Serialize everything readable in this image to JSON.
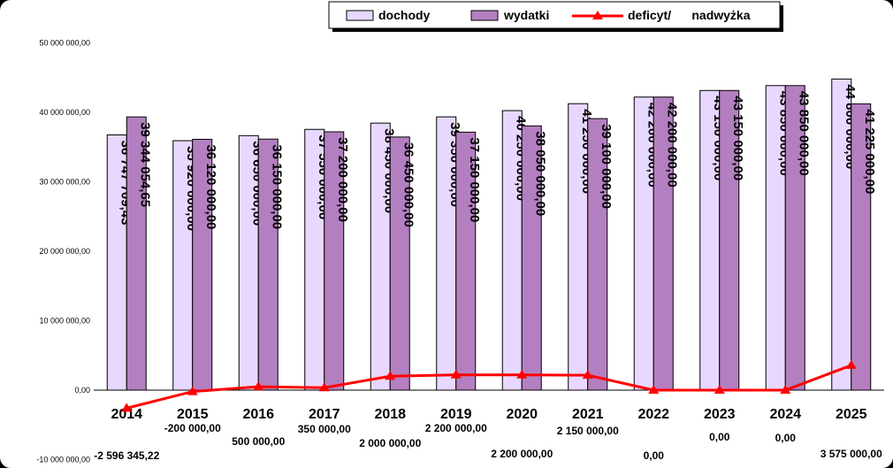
{
  "chart_data": {
    "type": "bar",
    "categories": [
      "2014",
      "2015",
      "2016",
      "2017",
      "2018",
      "2019",
      "2020",
      "2021",
      "2022",
      "2023",
      "2024",
      "2025"
    ],
    "series": [
      {
        "name": "dochody",
        "type": "bar",
        "color": "#e8d8ff",
        "values": [
          36747709.43,
          35920000,
          36650000,
          37550000,
          38450000,
          39350000,
          40250000,
          41250000,
          42200000,
          43150000,
          43850000,
          44800000
        ],
        "labels": [
          "36 747 709,43",
          "35 920 000,00",
          "36 650 000,00",
          "37 550 000,00",
          "38 450 000,00",
          "39 350 000,00",
          "40 250 000,00",
          "41 250 000,00",
          "42 200 000,00",
          "43 150 000,00",
          "43 850 000,00",
          "44 800 000,00"
        ]
      },
      {
        "name": "wydatki",
        "type": "bar",
        "color": "#b47fc0",
        "values": [
          39344054.65,
          36120000,
          36150000,
          37200000,
          36450000,
          37150000,
          38050000,
          39100000,
          42200000,
          43150000,
          43850000,
          41225000
        ],
        "labels": [
          "39 344 054,65",
          "36 120 000,00",
          "36 150 000,00",
          "37 200 000,00",
          "36 450 000,00",
          "37 150 000,00",
          "38 050 000,00",
          "39 100 000,00",
          "42 200 000,00",
          "43 150 000,00",
          "43 850 000,00",
          "41 225 000,00"
        ]
      },
      {
        "name": "deficyt/      nadwyżka",
        "type": "line",
        "color": "#ff0000",
        "values": [
          -2596345.22,
          -200000,
          500000,
          350000,
          2000000,
          2200000,
          2200000,
          2150000,
          0,
          0,
          0,
          3575000
        ],
        "labels": [
          "-2 596 345,22",
          "-200 000,00",
          "500 000,00",
          "350 000,00",
          "2 000 000,00",
          "2 200 000,00",
          "2 200 000,00",
          "2 150 000,00",
          "0,00",
          "0,00",
          "0,00",
          "3 575 000,00"
        ]
      }
    ],
    "ylim": [
      -10000000,
      50000000
    ],
    "yticks": [
      -10000000,
      0,
      10000000,
      20000000,
      30000000,
      40000000,
      50000000
    ],
    "ytick_labels": [
      "-10 000 000,00",
      "0,00",
      "10 000 000,00",
      "20 000 000,00",
      "30 000 000,00",
      "40 000 000,00",
      "50 000 000,00"
    ],
    "legend_position": "top-right",
    "grid": false
  }
}
